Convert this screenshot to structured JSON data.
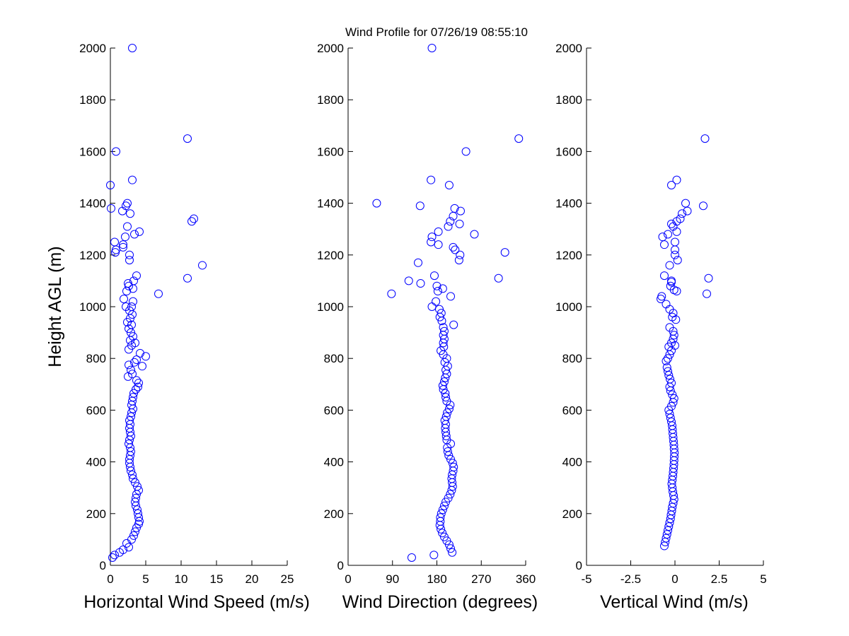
{
  "figure": {
    "title": "Wind Profile for  07/26/19 08:55:10",
    "marker_color": "#0000ff"
  },
  "chart_data": [
    {
      "type": "scatter",
      "xlabel": "Horizontal Wind Speed (m/s)",
      "ylabel": "Height AGL (m)",
      "xlim": [
        0,
        25
      ],
      "ylim": [
        0,
        2000
      ],
      "xticks": [
        0,
        5,
        10,
        15,
        20,
        25
      ],
      "xtick_labels": [
        "0",
        "5",
        "10",
        "15",
        "20",
        "25"
      ],
      "yticks": [
        0,
        200,
        400,
        600,
        800,
        1000,
        1200,
        1400,
        1600,
        1800,
        2000
      ],
      "ytick_labels": [
        "0",
        "200",
        "400",
        "600",
        "800",
        "1000",
        "1200",
        "1400",
        "1600",
        "1800",
        "2000"
      ],
      "grid": false,
      "points": [
        [
          0.3,
          30
        ],
        [
          0.6,
          40
        ],
        [
          1.3,
          50
        ],
        [
          1.8,
          60
        ],
        [
          2.6,
          70
        ],
        [
          2.3,
          85
        ],
        [
          3.0,
          100
        ],
        [
          3.3,
          115
        ],
        [
          3.5,
          130
        ],
        [
          3.7,
          145
        ],
        [
          4.0,
          160
        ],
        [
          4.1,
          170
        ],
        [
          4.0,
          185
        ],
        [
          3.9,
          200
        ],
        [
          3.8,
          215
        ],
        [
          3.6,
          230
        ],
        [
          3.5,
          245
        ],
        [
          3.6,
          260
        ],
        [
          3.7,
          275
        ],
        [
          4.0,
          290
        ],
        [
          3.8,
          305
        ],
        [
          3.5,
          320
        ],
        [
          3.2,
          335
        ],
        [
          3.1,
          350
        ],
        [
          2.9,
          365
        ],
        [
          2.8,
          380
        ],
        [
          2.7,
          395
        ],
        [
          2.7,
          410
        ],
        [
          2.8,
          425
        ],
        [
          2.9,
          440
        ],
        [
          2.8,
          455
        ],
        [
          2.6,
          470
        ],
        [
          2.7,
          485
        ],
        [
          2.9,
          500
        ],
        [
          2.8,
          515
        ],
        [
          2.7,
          530
        ],
        [
          2.8,
          545
        ],
        [
          2.7,
          560
        ],
        [
          2.9,
          575
        ],
        [
          3.0,
          590
        ],
        [
          3.2,
          605
        ],
        [
          3.0,
          620
        ],
        [
          3.1,
          635
        ],
        [
          3.2,
          650
        ],
        [
          3.3,
          665
        ],
        [
          3.6,
          680
        ],
        [
          3.9,
          690
        ],
        [
          4.0,
          705
        ],
        [
          3.7,
          715
        ],
        [
          2.5,
          730
        ],
        [
          3.1,
          740
        ],
        [
          2.9,
          755
        ],
        [
          4.5,
          770
        ],
        [
          2.6,
          775
        ],
        [
          3.4,
          785
        ],
        [
          3.7,
          795
        ],
        [
          5.0,
          808
        ],
        [
          4.2,
          820
        ],
        [
          2.6,
          835
        ],
        [
          3.0,
          850
        ],
        [
          3.5,
          860
        ],
        [
          2.8,
          870
        ],
        [
          3.2,
          885
        ],
        [
          2.9,
          900
        ],
        [
          2.6,
          915
        ],
        [
          3.0,
          930
        ],
        [
          2.4,
          940
        ],
        [
          2.8,
          955
        ],
        [
          3.1,
          970
        ],
        [
          2.7,
          985
        ],
        [
          3.0,
          1000
        ],
        [
          2.2,
          1000
        ],
        [
          3.2,
          1020
        ],
        [
          1.9,
          1030
        ],
        [
          6.8,
          1050
        ],
        [
          2.3,
          1060
        ],
        [
          3.2,
          1070
        ],
        [
          2.6,
          1080
        ],
        [
          2.5,
          1090
        ],
        [
          3.3,
          1100
        ],
        [
          10.9,
          1110
        ],
        [
          3.7,
          1120
        ],
        [
          13.0,
          1160
        ],
        [
          2.7,
          1180
        ],
        [
          2.7,
          1200
        ],
        [
          0.7,
          1210
        ],
        [
          0.8,
          1220
        ],
        [
          1.8,
          1230
        ],
        [
          1.8,
          1240
        ],
        [
          0.6,
          1250
        ],
        [
          2.1,
          1270
        ],
        [
          3.4,
          1280
        ],
        [
          4.1,
          1290
        ],
        [
          2.4,
          1310
        ],
        [
          11.5,
          1330
        ],
        [
          11.8,
          1340
        ],
        [
          2.8,
          1360
        ],
        [
          1.7,
          1370
        ],
        [
          0.1,
          1380
        ],
        [
          2.2,
          1390
        ],
        [
          2.4,
          1400
        ],
        [
          0.0,
          1470
        ],
        [
          3.1,
          1490
        ],
        [
          0.8,
          1600
        ],
        [
          10.9,
          1650
        ],
        [
          3.1,
          2000
        ]
      ]
    },
    {
      "type": "scatter",
      "xlabel": "Wind Direction (degrees)",
      "ylabel": "",
      "xlim": [
        0,
        360
      ],
      "ylim": [
        0,
        2000
      ],
      "xticks": [
        0,
        90,
        180,
        270,
        360
      ],
      "xtick_labels": [
        "0",
        "90",
        "180",
        "270",
        "360"
      ],
      "yticks": [
        0,
        200,
        400,
        600,
        800,
        1000,
        1200,
        1400,
        1600,
        1800,
        2000
      ],
      "ytick_labels": [
        "0",
        "200",
        "400",
        "600",
        "800",
        "1000",
        "1200",
        "1400",
        "1600",
        "1800",
        "2000"
      ],
      "grid": false,
      "points": [
        [
          129,
          30
        ],
        [
          174,
          40
        ],
        [
          211,
          50
        ],
        [
          208,
          65
        ],
        [
          205,
          80
        ],
        [
          200,
          95
        ],
        [
          195,
          110
        ],
        [
          191,
          125
        ],
        [
          188,
          140
        ],
        [
          186,
          155
        ],
        [
          187,
          170
        ],
        [
          187,
          185
        ],
        [
          189,
          200
        ],
        [
          192,
          215
        ],
        [
          195,
          230
        ],
        [
          198,
          245
        ],
        [
          203,
          260
        ],
        [
          207,
          275
        ],
        [
          210,
          290
        ],
        [
          212,
          305
        ],
        [
          211,
          320
        ],
        [
          210,
          335
        ],
        [
          211,
          350
        ],
        [
          213,
          365
        ],
        [
          214,
          380
        ],
        [
          212,
          395
        ],
        [
          208,
          410
        ],
        [
          204,
          425
        ],
        [
          202,
          440
        ],
        [
          201,
          455
        ],
        [
          208,
          470
        ],
        [
          200,
          485
        ],
        [
          199,
          500
        ],
        [
          198,
          515
        ],
        [
          197,
          530
        ],
        [
          198,
          545
        ],
        [
          196,
          560
        ],
        [
          199,
          575
        ],
        [
          201,
          590
        ],
        [
          205,
          605
        ],
        [
          207,
          620
        ],
        [
          200,
          635
        ],
        [
          198,
          650
        ],
        [
          197,
          665
        ],
        [
          193,
          680
        ],
        [
          192,
          695
        ],
        [
          195,
          710
        ],
        [
          197,
          725
        ],
        [
          200,
          740
        ],
        [
          198,
          755
        ],
        [
          202,
          770
        ],
        [
          196,
          785
        ],
        [
          200,
          800
        ],
        [
          193,
          815
        ],
        [
          188,
          830
        ],
        [
          194,
          845
        ],
        [
          193,
          860
        ],
        [
          195,
          875
        ],
        [
          193,
          890
        ],
        [
          195,
          905
        ],
        [
          193,
          920
        ],
        [
          214,
          930
        ],
        [
          190,
          945
        ],
        [
          186,
          960
        ],
        [
          189,
          975
        ],
        [
          185,
          990
        ],
        [
          170,
          1000
        ],
        [
          178,
          1020
        ],
        [
          208,
          1040
        ],
        [
          88,
          1050
        ],
        [
          182,
          1060
        ],
        [
          192,
          1070
        ],
        [
          180,
          1080
        ],
        [
          147,
          1090
        ],
        [
          123,
          1100
        ],
        [
          305,
          1110
        ],
        [
          175,
          1120
        ],
        [
          142,
          1170
        ],
        [
          225,
          1180
        ],
        [
          318,
          1210
        ],
        [
          227,
          1200
        ],
        [
          217,
          1220
        ],
        [
          213,
          1230
        ],
        [
          183,
          1240
        ],
        [
          168,
          1250
        ],
        [
          170,
          1270
        ],
        [
          183,
          1290
        ],
        [
          256,
          1280
        ],
        [
          203,
          1310
        ],
        [
          226,
          1320
        ],
        [
          207,
          1330
        ],
        [
          213,
          1350
        ],
        [
          228,
          1370
        ],
        [
          216,
          1380
        ],
        [
          58,
          1400
        ],
        [
          146,
          1390
        ],
        [
          205,
          1470
        ],
        [
          168,
          1490
        ],
        [
          239,
          1600
        ],
        [
          346,
          1650
        ],
        [
          170,
          2000
        ]
      ]
    },
    {
      "type": "scatter",
      "xlabel": "Vertical Wind (m/s)",
      "ylabel": "",
      "xlim": [
        -5,
        5
      ],
      "ylim": [
        0,
        2000
      ],
      "xticks": [
        -5,
        -2.5,
        0,
        2.5,
        5
      ],
      "xtick_labels": [
        "-5",
        "-2.5",
        "0",
        "2.5",
        "5"
      ],
      "yticks": [
        0,
        200,
        400,
        600,
        800,
        1000,
        1200,
        1400,
        1600,
        1800,
        2000
      ],
      "ytick_labels": [
        "0",
        "200",
        "400",
        "600",
        "800",
        "1000",
        "1200",
        "1400",
        "1600",
        "1800",
        "2000"
      ],
      "grid": false,
      "points": [
        [
          -0.6,
          75
        ],
        [
          -0.55,
          90
        ],
        [
          -0.5,
          105
        ],
        [
          -0.45,
          120
        ],
        [
          -0.4,
          135
        ],
        [
          -0.35,
          150
        ],
        [
          -0.3,
          165
        ],
        [
          -0.25,
          180
        ],
        [
          -0.22,
          195
        ],
        [
          -0.18,
          210
        ],
        [
          -0.15,
          225
        ],
        [
          -0.1,
          240
        ],
        [
          -0.05,
          255
        ],
        [
          -0.08,
          270
        ],
        [
          -0.12,
          285
        ],
        [
          -0.15,
          300
        ],
        [
          -0.18,
          315
        ],
        [
          -0.15,
          330
        ],
        [
          -0.12,
          345
        ],
        [
          -0.1,
          360
        ],
        [
          -0.08,
          375
        ],
        [
          -0.06,
          390
        ],
        [
          -0.05,
          405
        ],
        [
          -0.04,
          420
        ],
        [
          -0.03,
          435
        ],
        [
          -0.05,
          450
        ],
        [
          -0.06,
          465
        ],
        [
          -0.08,
          480
        ],
        [
          -0.1,
          495
        ],
        [
          -0.12,
          510
        ],
        [
          -0.14,
          525
        ],
        [
          -0.16,
          540
        ],
        [
          -0.2,
          555
        ],
        [
          -0.25,
          570
        ],
        [
          -0.3,
          585
        ],
        [
          -0.35,
          600
        ],
        [
          -0.2,
          615
        ],
        [
          -0.1,
          630
        ],
        [
          -0.05,
          645
        ],
        [
          -0.15,
          660
        ],
        [
          -0.25,
          675
        ],
        [
          -0.3,
          690
        ],
        [
          -0.2,
          705
        ],
        [
          -0.28,
          720
        ],
        [
          -0.35,
          735
        ],
        [
          -0.4,
          750
        ],
        [
          -0.45,
          765
        ],
        [
          -0.5,
          790
        ],
        [
          -0.4,
          800
        ],
        [
          -0.3,
          815
        ],
        [
          -0.2,
          830
        ],
        [
          -0.35,
          845
        ],
        [
          0.0,
          850
        ],
        [
          -0.2,
          860
        ],
        [
          -0.1,
          875
        ],
        [
          -0.05,
          890
        ],
        [
          -0.1,
          905
        ],
        [
          -0.3,
          920
        ],
        [
          0.05,
          950
        ],
        [
          -0.15,
          960
        ],
        [
          -0.1,
          975
        ],
        [
          -0.3,
          990
        ],
        [
          -0.5,
          1010
        ],
        [
          -0.8,
          1030
        ],
        [
          -0.75,
          1040
        ],
        [
          0.1,
          1060
        ],
        [
          -0.05,
          1065
        ],
        [
          -0.25,
          1080
        ],
        [
          -0.2,
          1095
        ],
        [
          -0.2,
          1100
        ],
        [
          1.8,
          1050
        ],
        [
          1.9,
          1110
        ],
        [
          -0.6,
          1120
        ],
        [
          -0.3,
          1160
        ],
        [
          0.15,
          1180
        ],
        [
          0.0,
          1200
        ],
        [
          0.0,
          1220
        ],
        [
          -0.6,
          1240
        ],
        [
          0.0,
          1250
        ],
        [
          -0.7,
          1270
        ],
        [
          -0.4,
          1280
        ],
        [
          0.1,
          1290
        ],
        [
          -0.1,
          1310
        ],
        [
          -0.2,
          1320
        ],
        [
          0.1,
          1330
        ],
        [
          0.3,
          1340
        ],
        [
          0.4,
          1360
        ],
        [
          0.7,
          1370
        ],
        [
          1.6,
          1390
        ],
        [
          0.6,
          1400
        ],
        [
          -0.2,
          1470
        ],
        [
          0.1,
          1490
        ],
        [
          1.7,
          1650
        ]
      ]
    }
  ]
}
